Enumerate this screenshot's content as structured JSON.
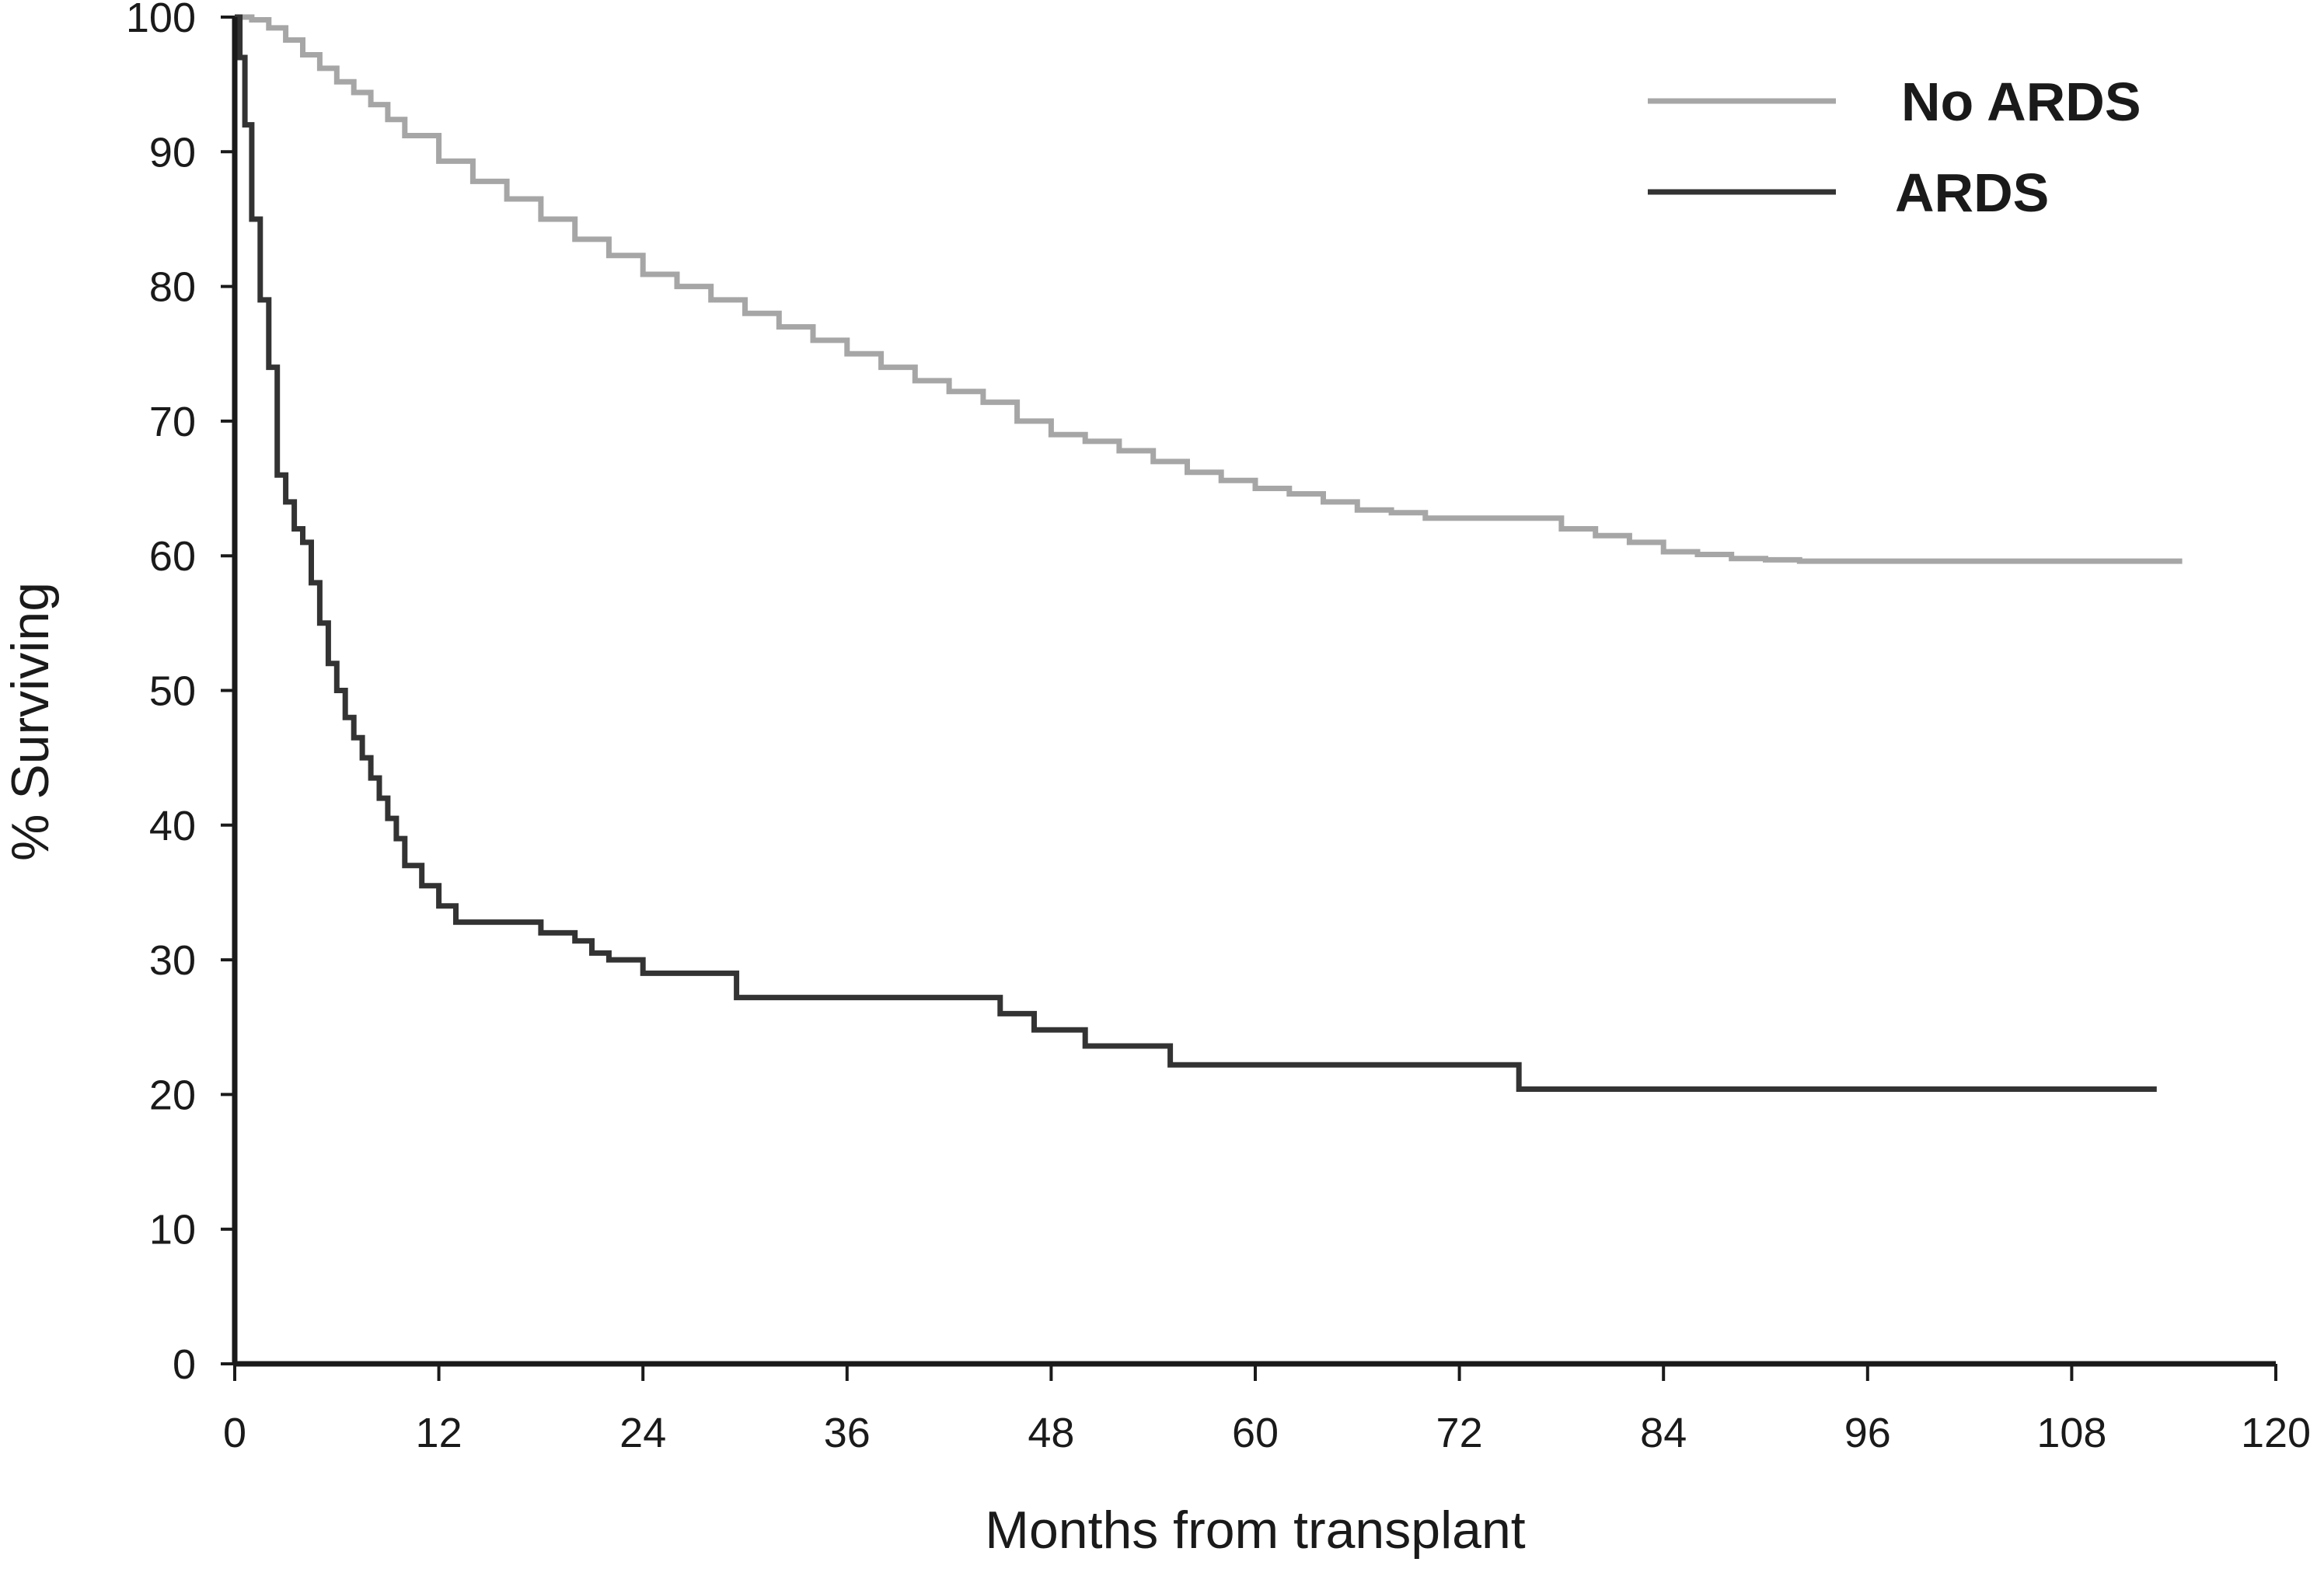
{
  "chart_data": {
    "type": "line",
    "step": true,
    "xlabel": "Months from transplant",
    "ylabel": "% Surviving",
    "xlim": [
      0,
      120
    ],
    "ylim": [
      0,
      100
    ],
    "xticks": [
      0,
      12,
      24,
      36,
      48,
      60,
      72,
      84,
      96,
      108,
      120
    ],
    "yticks": [
      0,
      10,
      20,
      30,
      40,
      50,
      60,
      70,
      80,
      90,
      100
    ],
    "grid": false,
    "legend_position": "top-right",
    "series": [
      {
        "name": "No ARDS",
        "color": "#a6a6a6",
        "x": [
          0,
          0.5,
          1,
          2,
          3,
          4,
          5,
          6,
          7,
          8,
          9,
          10,
          12,
          14,
          16,
          18,
          20,
          22,
          24,
          26,
          28,
          30,
          32,
          34,
          36,
          38,
          40,
          42,
          44,
          46,
          48,
          50,
          52,
          54,
          56,
          58,
          60,
          62,
          64,
          66,
          68,
          70,
          72,
          74,
          76,
          78,
          80,
          82,
          84,
          86,
          88,
          90,
          92,
          96,
          100,
          104,
          108,
          112,
          114.5
        ],
        "values": [
          100,
          100,
          99.8,
          99.2,
          98.3,
          97.2,
          96.2,
          95.2,
          94.4,
          93.5,
          92.4,
          91.2,
          89.3,
          87.8,
          86.5,
          85.0,
          83.5,
          82.3,
          80.9,
          80.0,
          79.0,
          78.0,
          77.0,
          76.0,
          75.0,
          74.0,
          73.0,
          72.2,
          71.4,
          70.0,
          69.0,
          68.5,
          67.8,
          67.0,
          66.2,
          65.6,
          65.0,
          64.6,
          64.0,
          63.4,
          63.2,
          62.8,
          62.8,
          62.8,
          62.8,
          62.0,
          61.5,
          61.0,
          60.3,
          60.1,
          59.8,
          59.7,
          59.6,
          59.6,
          59.6,
          59.6,
          59.6,
          59.6,
          59.6
        ]
      },
      {
        "name": "ARDS",
        "color": "#333333",
        "x": [
          0,
          0.3,
          0.6,
          1,
          1.5,
          2,
          2.5,
          3,
          3.5,
          4,
          4.5,
          5,
          5.5,
          6,
          6.5,
          7,
          7.5,
          8,
          8.5,
          9,
          9.5,
          10,
          11,
          12,
          13,
          16,
          18,
          20,
          21,
          22,
          24,
          26,
          28,
          29.5,
          31,
          33,
          35,
          37,
          40,
          43,
          45,
          47,
          48.5,
          50,
          52,
          54,
          55,
          60,
          65,
          70,
          75,
          75.5,
          80,
          90,
          100,
          110,
          113
        ],
        "values": [
          100,
          97,
          92,
          85,
          79,
          74,
          66,
          64,
          62,
          61,
          58,
          55,
          52,
          50,
          48,
          46.5,
          45,
          43.5,
          42,
          40.5,
          39,
          37,
          35.5,
          34,
          32.8,
          32.8,
          32.0,
          31.4,
          30.5,
          30.0,
          29.0,
          29.0,
          29.0,
          27.2,
          27.2,
          27.2,
          27.2,
          27.2,
          27.2,
          27.2,
          26.0,
          24.8,
          24.8,
          23.6,
          23.6,
          23.6,
          22.2,
          22.2,
          22.2,
          22.2,
          22.2,
          20.4,
          20.4,
          20.4,
          20.4,
          20.4,
          20.4
        ]
      }
    ]
  }
}
